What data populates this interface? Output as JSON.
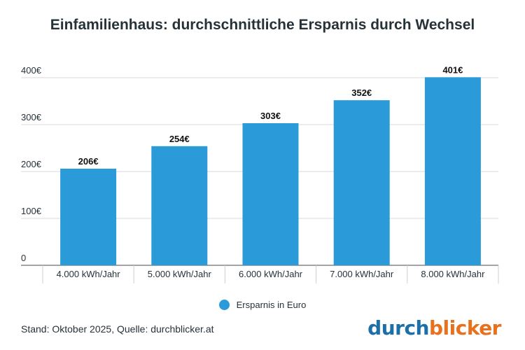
{
  "chart_data": {
    "type": "bar",
    "title": "Einfamilienhaus: durchschnittliche Ersparnis durch Wechsel",
    "categories": [
      "4.000 kWh/Jahr",
      "5.000 kWh/Jahr",
      "6.000 kWh/Jahr",
      "7.000 kWh/Jahr",
      "8.000 kWh/Jahr"
    ],
    "series": [
      {
        "name": "Ersparnis in Euro",
        "values": [
          206,
          254,
          303,
          352,
          401
        ]
      }
    ],
    "data_labels": [
      "206€",
      "254€",
      "303€",
      "352€",
      "401€"
    ],
    "yticks": [
      0,
      100,
      200,
      300,
      400
    ],
    "ytick_labels": [
      "0",
      "100€",
      "200€",
      "300€",
      "400€"
    ],
    "ylim": [
      0,
      400
    ],
    "xlabel": "",
    "ylabel": "",
    "grid": true,
    "legend_position": "bottom-center"
  },
  "legend": {
    "label": "Ersparnis in Euro"
  },
  "footnote": "Stand: Oktober 2025, Quelle: durchblicker.at",
  "logo": {
    "part1": "durch",
    "part2": "blicker"
  },
  "colors": {
    "bar": "#2a9bd8",
    "logo_blue": "#1d6fa8",
    "logo_orange": "#e8711e",
    "grid": "#d9d9d9",
    "text": "#263238"
  }
}
